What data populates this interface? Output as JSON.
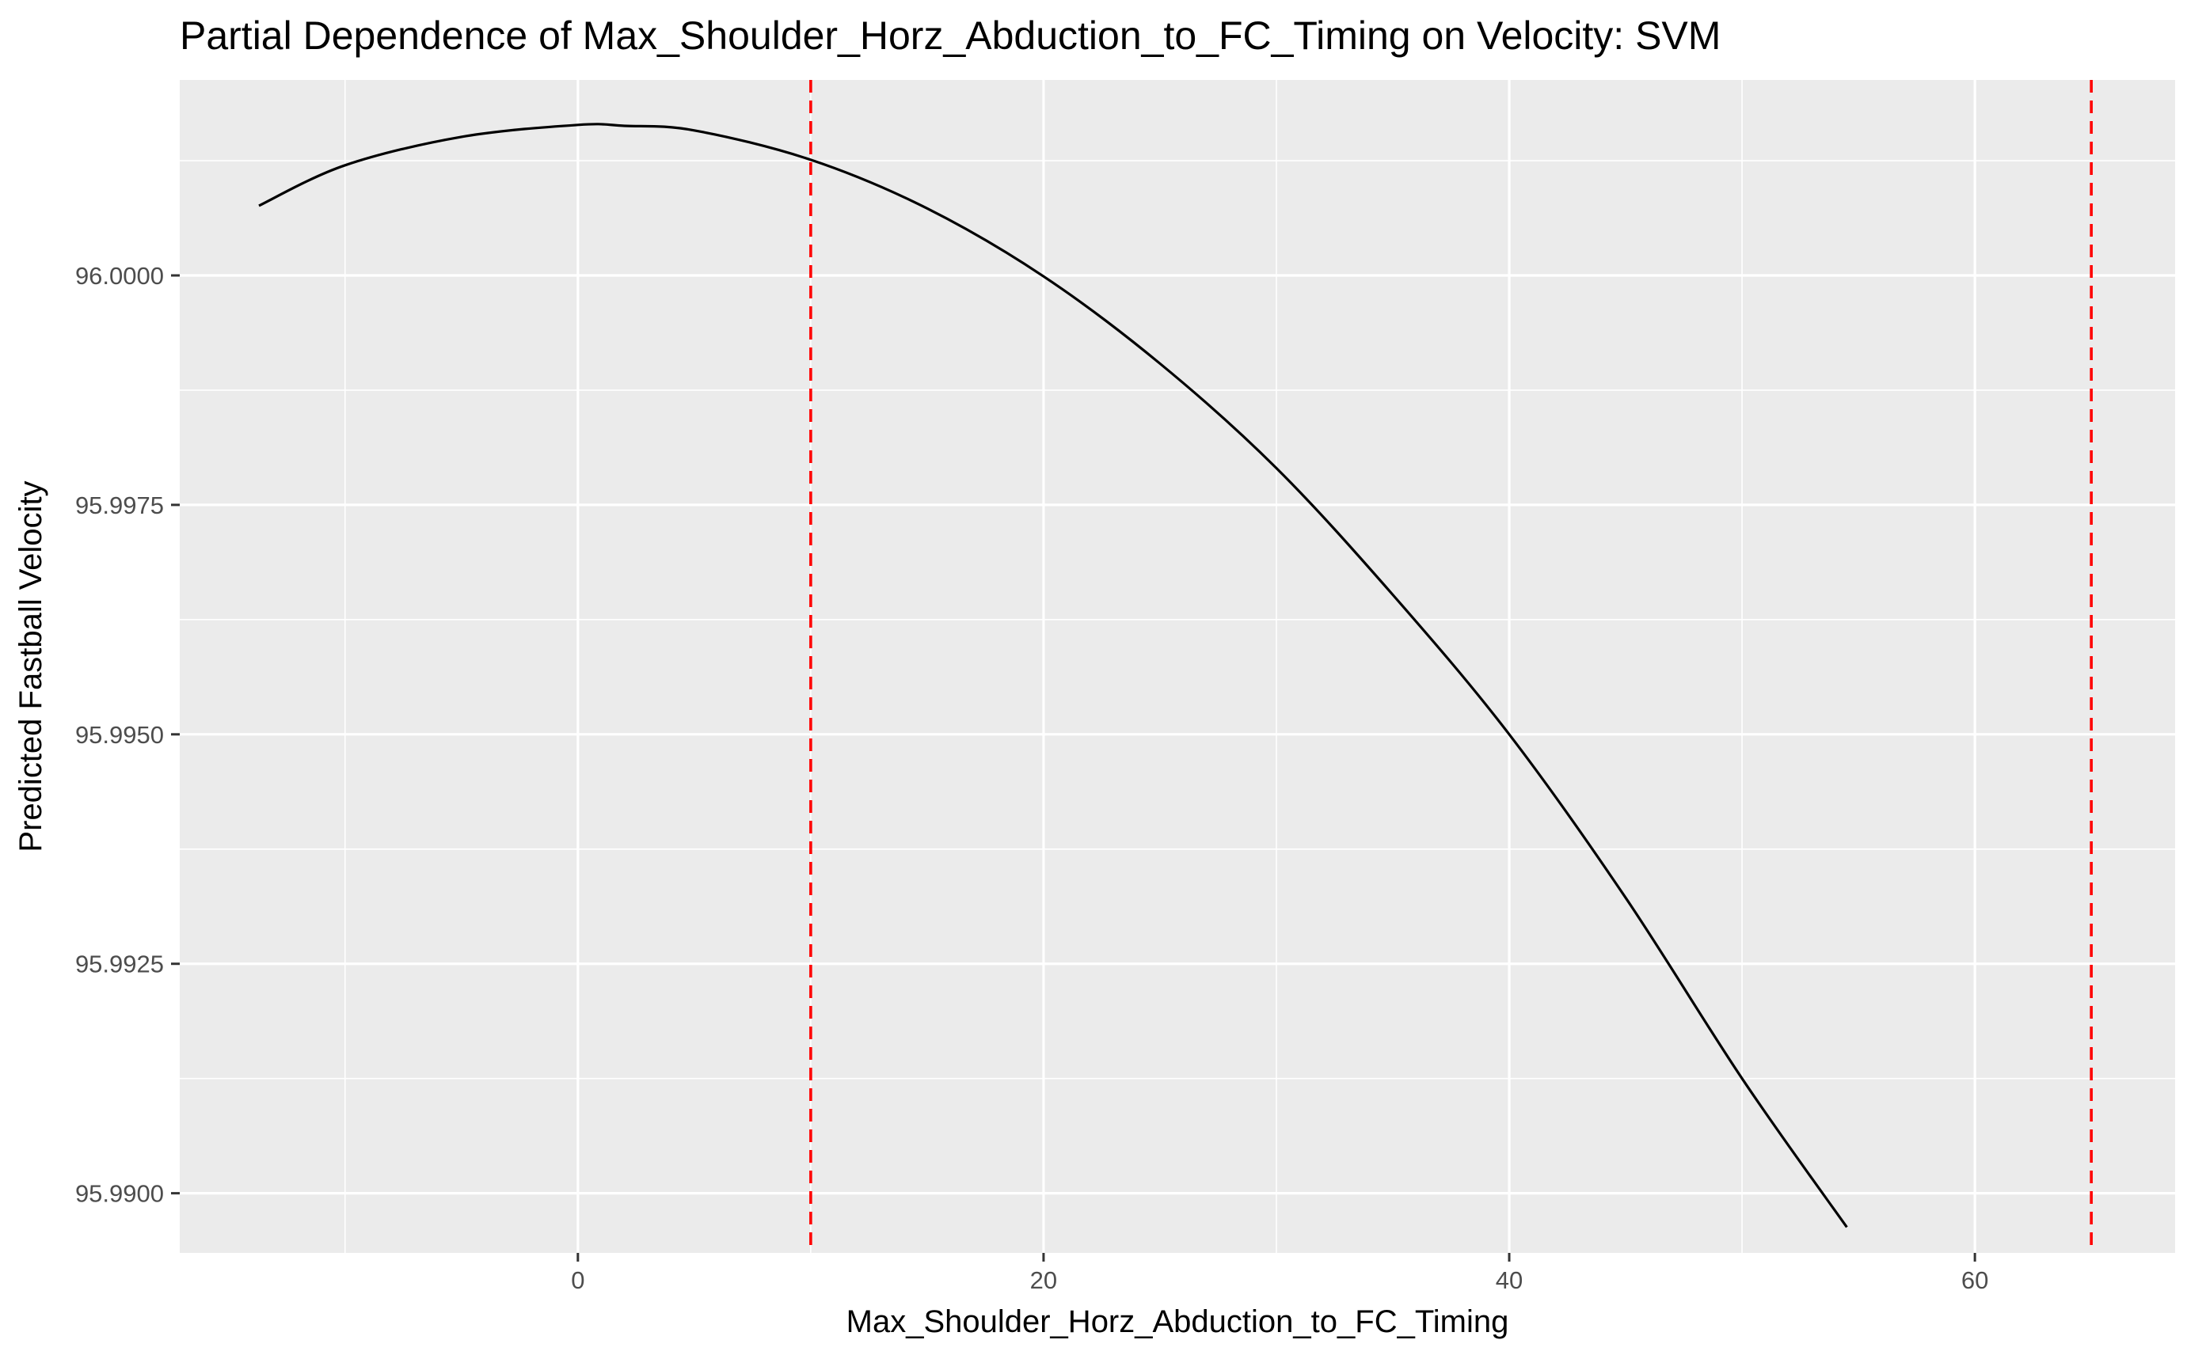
{
  "chart_data": {
    "type": "line",
    "title": "Partial Dependence of Max_Shoulder_Horz_Abduction_to_FC_Timing on Velocity: SVM",
    "xlabel": "Max_Shoulder_Horz_Abduction_to_FC_Timing",
    "ylabel": "Predicted Fastball Velocity",
    "xlim": [
      -17.1,
      68.6
    ],
    "ylim": [
      95.98935,
      96.00213
    ],
    "x_ticks": [
      0,
      20,
      40,
      60
    ],
    "x_tick_labels": [
      "0",
      "20",
      "40",
      "60"
    ],
    "y_ticks": [
      95.99,
      95.9925,
      95.995,
      95.9975,
      96.0
    ],
    "y_tick_labels": [
      "95.9900",
      "95.9925",
      "95.9950",
      "95.9975",
      "96.0000"
    ],
    "x_minor_ticks": [
      -10,
      10,
      30,
      50
    ],
    "y_minor_ticks": [
      95.99125,
      95.99375,
      95.99625,
      95.99875,
      96.00125
    ],
    "grid": true,
    "background": "#EBEBEB",
    "series": [
      {
        "color": "#000000",
        "points": [
          [
            -13.7,
            96.00076
          ],
          [
            -10,
            96.0012
          ],
          [
            -5,
            96.00151
          ],
          [
            0,
            96.00164
          ],
          [
            2,
            96.00163
          ],
          [
            5,
            96.00158
          ],
          [
            10,
            96.00126
          ],
          [
            15,
            96.00073
          ],
          [
            20,
            95.99999
          ],
          [
            25,
            95.99904
          ],
          [
            30,
            95.9979
          ],
          [
            35,
            95.99652
          ],
          [
            40,
            95.995
          ],
          [
            45,
            95.99322
          ],
          [
            50,
            95.99125
          ],
          [
            54.5,
            95.98963
          ]
        ]
      }
    ],
    "vlines": [
      {
        "x": 10,
        "color": "#FF0000",
        "style": "dashed"
      },
      {
        "x": 65,
        "color": "#FF0000",
        "style": "dashed"
      }
    ]
  }
}
